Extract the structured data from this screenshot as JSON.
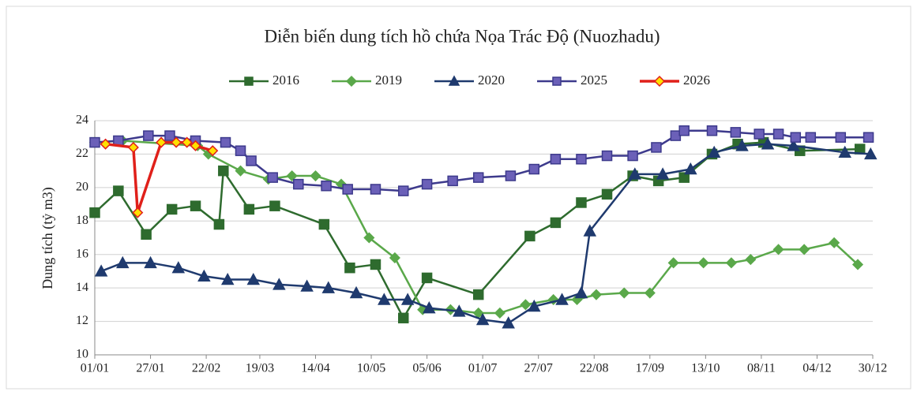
{
  "chart_data": {
    "type": "line",
    "title": "Diễn biến dung tích hồ chứa Nọa Trác Độ (Nuozhadu)",
    "y_label": "Dung tích (tỷ m3)",
    "xlim": [
      0,
      363
    ],
    "ylim": [
      10,
      24
    ],
    "xticks": [
      {
        "value": 0,
        "label": "01/01"
      },
      {
        "value": 26,
        "label": "27/01"
      },
      {
        "value": 52,
        "label": "22/02"
      },
      {
        "value": 77,
        "label": "19/03"
      },
      {
        "value": 103,
        "label": "14/04"
      },
      {
        "value": 129,
        "label": "10/05"
      },
      {
        "value": 155,
        "label": "05/06"
      },
      {
        "value": 181,
        "label": "01/07"
      },
      {
        "value": 207,
        "label": "27/07"
      },
      {
        "value": 233,
        "label": "22/08"
      },
      {
        "value": 259,
        "label": "17/09"
      },
      {
        "value": 285,
        "label": "13/10"
      },
      {
        "value": 311,
        "label": "08/11"
      },
      {
        "value": 337,
        "label": "04/12"
      },
      {
        "value": 363,
        "label": "30/12"
      }
    ],
    "yticks": [
      10,
      12,
      14,
      16,
      18,
      20,
      22,
      24
    ],
    "grid": true,
    "series": [
      {
        "name": "2016",
        "color": "#2e6b2e",
        "marker": "square",
        "marker_color": "#2e6b2e",
        "x": [
          0,
          11,
          24,
          36,
          47,
          58,
          60,
          72,
          84,
          107,
          119,
          131,
          144,
          155,
          179,
          203,
          215,
          227,
          239,
          251,
          263,
          275,
          288,
          300,
          312,
          329,
          357
        ],
        "values": [
          18.5,
          19.8,
          17.2,
          18.7,
          18.9,
          17.8,
          21.0,
          18.7,
          18.9,
          17.8,
          15.2,
          15.4,
          12.2,
          14.6,
          13.6,
          17.1,
          17.9,
          19.1,
          19.6,
          20.7,
          20.4,
          20.6,
          22.0,
          22.6,
          22.7,
          22.2,
          22.3
        ]
      },
      {
        "name": "2019",
        "color": "#5aa84a",
        "marker": "diamond",
        "marker_color": "#5aa84a",
        "x": [
          0,
          13,
          48,
          53,
          68,
          81,
          92,
          103,
          115,
          128,
          140,
          153,
          166,
          179,
          189,
          201,
          214,
          225,
          234,
          247,
          259,
          270,
          284,
          297,
          306,
          319,
          331,
          345,
          356
        ],
        "values": [
          22.7,
          22.8,
          22.5,
          22.0,
          21.0,
          20.5,
          20.7,
          20.7,
          20.2,
          17.0,
          15.8,
          12.7,
          12.7,
          12.5,
          12.5,
          13.0,
          13.3,
          13.3,
          13.6,
          13.7,
          13.7,
          15.5,
          15.5,
          15.5,
          15.7,
          16.3,
          16.3,
          16.7,
          15.4
        ]
      },
      {
        "name": "2020",
        "color": "#1f3a6e",
        "marker": "triangle",
        "marker_color": "#1f3a6e",
        "x": [
          3,
          13,
          26,
          39,
          51,
          62,
          74,
          86,
          99,
          109,
          122,
          135,
          146,
          156,
          170,
          181,
          193,
          205,
          218,
          227,
          231,
          252,
          265,
          278,
          289,
          302,
          314,
          326,
          350,
          362
        ],
        "values": [
          15.0,
          15.5,
          15.5,
          15.2,
          14.7,
          14.5,
          14.5,
          14.2,
          14.1,
          14.0,
          13.7,
          13.3,
          13.3,
          12.8,
          12.6,
          12.1,
          11.9,
          12.9,
          13.3,
          13.7,
          17.4,
          20.8,
          20.8,
          21.1,
          22.1,
          22.5,
          22.6,
          22.5,
          22.1,
          22.0
        ]
      },
      {
        "name": "2025",
        "color": "#3d3a8c",
        "marker": "square",
        "marker_color": "#6b60b8",
        "x": [
          0,
          11,
          25,
          35,
          47,
          61,
          68,
          73,
          83,
          95,
          108,
          118,
          131,
          144,
          155,
          167,
          179,
          194,
          205,
          215,
          227,
          239,
          251,
          262,
          271,
          275,
          288,
          299,
          310,
          319,
          327,
          334,
          348,
          361
        ],
        "values": [
          22.7,
          22.8,
          23.1,
          23.1,
          22.8,
          22.7,
          22.2,
          21.6,
          20.6,
          20.2,
          20.1,
          19.9,
          19.9,
          19.8,
          20.2,
          20.4,
          20.6,
          20.7,
          21.1,
          21.7,
          21.7,
          21.9,
          21.9,
          22.4,
          23.1,
          23.4,
          23.4,
          23.3,
          23.2,
          23.2,
          23.0,
          23.0,
          23.0,
          23.0
        ]
      },
      {
        "name": "2026",
        "color": "#e0201a",
        "marker": "diamond",
        "marker_color": "#ffe000",
        "x": [
          5,
          18,
          20,
          31,
          38,
          43,
          47,
          55
        ],
        "values": [
          22.6,
          22.4,
          18.5,
          22.7,
          22.7,
          22.7,
          22.5,
          22.2
        ]
      }
    ]
  }
}
